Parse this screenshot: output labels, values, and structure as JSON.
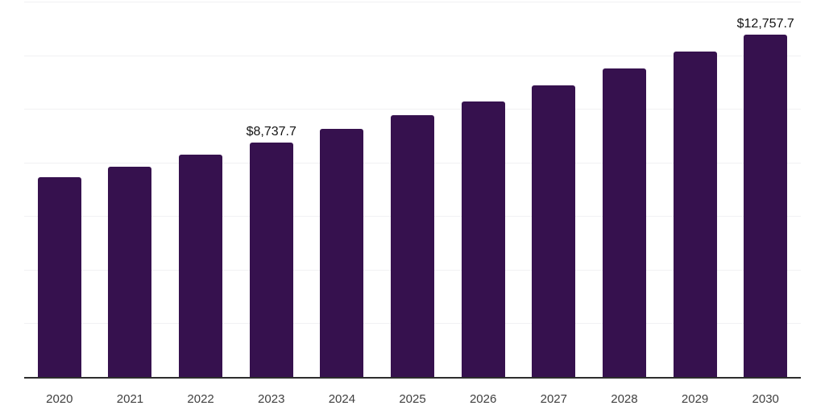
{
  "chart_data": {
    "type": "bar",
    "title": "",
    "xlabel": "",
    "ylabel": "",
    "categories": [
      "2020",
      "2021",
      "2022",
      "2023",
      "2024",
      "2025",
      "2026",
      "2027",
      "2028",
      "2029",
      "2030"
    ],
    "values": [
      7445,
      7836,
      8287,
      8737.7,
      9240,
      9775,
      10275,
      10878,
      11502,
      12135,
      12757.7
    ],
    "data_labels": [
      null,
      null,
      null,
      "$8,737.7",
      null,
      null,
      null,
      null,
      null,
      null,
      "$12,757.7"
    ],
    "ylim": [
      0,
      14000
    ],
    "gridline_interval": 2000,
    "grid": true,
    "legend": false,
    "y_tick_labels_visible": false,
    "colors": {
      "bar": "#36114E",
      "gridline": "#f1f1f3",
      "axis": "#2d2d2d",
      "tick_text": "#3f3f3f",
      "label_text": "#141414",
      "background": "#ffffff"
    }
  }
}
